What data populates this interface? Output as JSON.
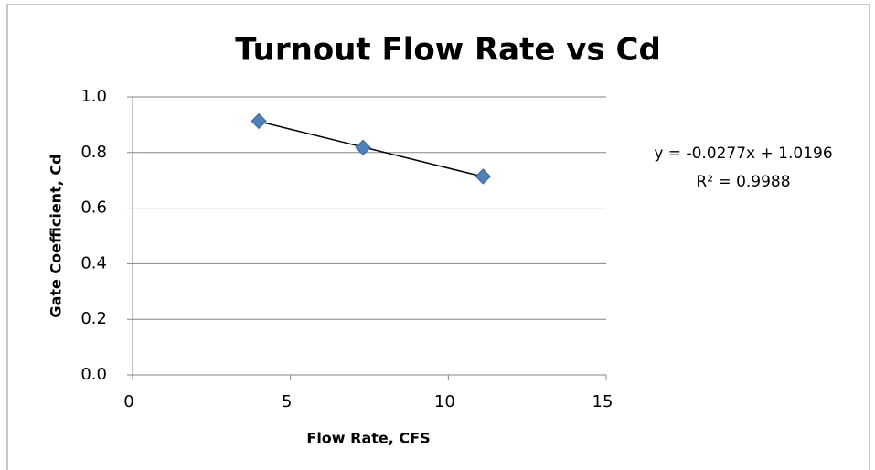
{
  "chart_data": {
    "type": "scatter",
    "title": "Turnout Flow Rate vs Cd",
    "x_label": "Flow Rate, CFS",
    "y_label": "Gate Coefficient, Cd",
    "series": [
      {
        "name": "Cd",
        "color": "#4f81bd",
        "x": [
          4.0,
          7.3,
          11.1
        ],
        "values": [
          0.913,
          0.818,
          0.714
        ]
      }
    ],
    "trendline": {
      "color": "#000000",
      "equation": "y = -0.0277x + 1.0196",
      "r_squared": "R² = 0.9988"
    },
    "xlim": [
      0,
      15
    ],
    "xticks": [
      0,
      5,
      10,
      15
    ],
    "ylim": [
      0,
      1.0
    ],
    "yticks": [
      {
        "value": 0,
        "label": "0.0"
      },
      0.2,
      0.4,
      0.6,
      0.8,
      {
        "value": 1.0,
        "label": "1.0"
      }
    ],
    "grid": true
  }
}
